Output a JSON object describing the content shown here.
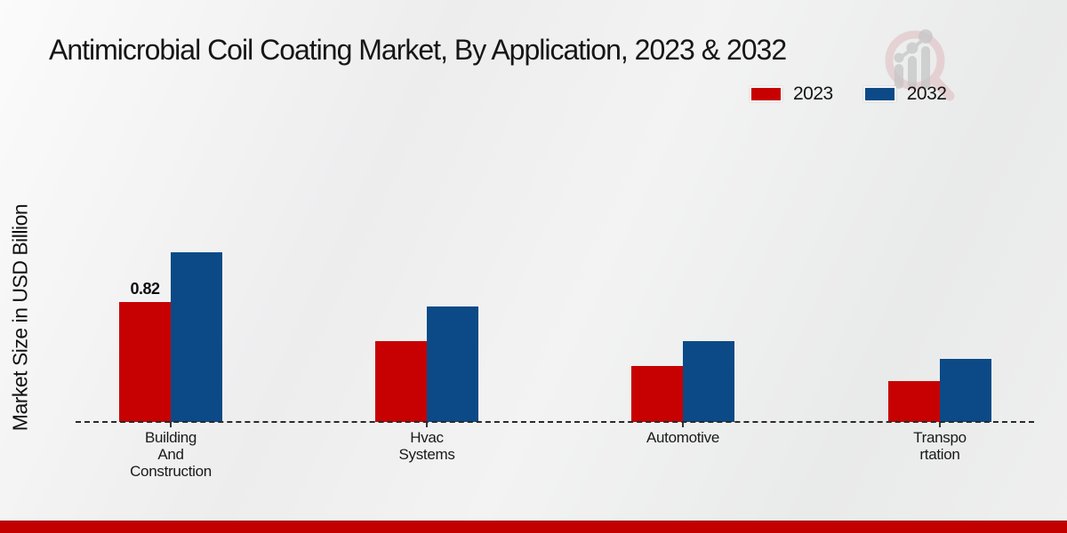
{
  "title": "Antimicrobial Coil Coating Market, By Application, 2023 & 2032",
  "y_axis_label": "Market Size in USD Billion",
  "legend": [
    {
      "label": "2023",
      "color": "#c70101"
    },
    {
      "label": "2032",
      "color": "#0b4a87"
    }
  ],
  "colors": {
    "series_2023": "#c70101",
    "series_2032": "#0b4a87",
    "footer_strip": "#c30000",
    "baseline": "#2a2a2a",
    "watermark_pink": "#ddb6ba",
    "watermark_gray": "#c6c6c6"
  },
  "footer": {
    "strip_color": "#c30000"
  },
  "watermark_icon": "magnifier-bar-chart-logo",
  "chart_data": {
    "type": "bar",
    "title": "Antimicrobial Coil Coating Market, By Application, 2023 & 2032",
    "xlabel": "",
    "ylabel": "Market Size in USD Billion",
    "categories": [
      "Building And Construction",
      "Hvac Systems",
      "Automotive",
      "Transportation"
    ],
    "category_label_lines": [
      [
        "Building",
        "And",
        "Construction"
      ],
      [
        "Hvac",
        "Systems"
      ],
      [
        "Automotive"
      ],
      [
        "Transpo",
        "rtation"
      ]
    ],
    "series": [
      {
        "name": "2023",
        "color": "#c70101",
        "values": [
          0.82,
          0.55,
          0.38,
          0.28
        ]
      },
      {
        "name": "2032",
        "color": "#0b4a87",
        "values": [
          1.16,
          0.79,
          0.55,
          0.43
        ]
      }
    ],
    "data_labels": [
      {
        "series_index": 0,
        "category_index": 0,
        "text": "0.82"
      }
    ],
    "ylim": [
      0,
      1.3
    ],
    "grid": false,
    "baseline_style": "dashed",
    "legend_position": "top-right"
  }
}
